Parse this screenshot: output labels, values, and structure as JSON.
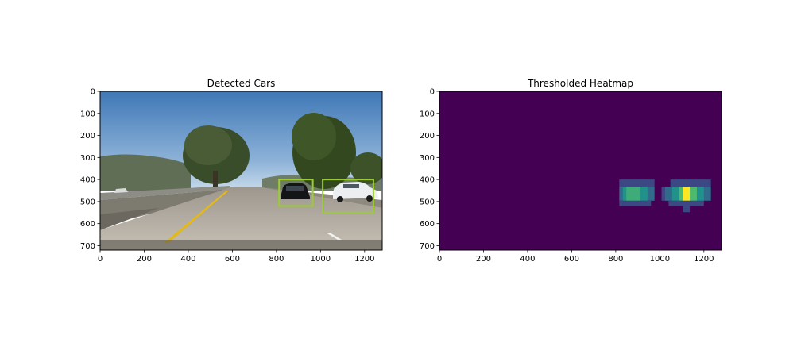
{
  "chart_data": [
    {
      "type": "image",
      "title": "Detected Cars",
      "xlim": [
        0,
        1280
      ],
      "ylim": [
        720,
        0
      ],
      "xticks": [
        0,
        200,
        400,
        600,
        800,
        1000,
        1200
      ],
      "yticks": [
        0,
        100,
        200,
        300,
        400,
        500,
        600,
        700
      ],
      "detections": [
        {
          "x1": 812,
          "y1": 400,
          "x2": 965,
          "y2": 520,
          "color": "#9acd32"
        },
        {
          "x1": 1010,
          "y1": 400,
          "x2": 1240,
          "y2": 550,
          "color": "#9acd32"
        }
      ],
      "colors": {
        "sky_top": "#4a82bd",
        "sky_bottom": "#c2d7ea",
        "road": "#b8b2a8",
        "lane_yellow": "#e2b81f",
        "box": "#9acd32"
      }
    },
    {
      "type": "heatmap",
      "title": "Thresholded Heatmap",
      "xlim": [
        0,
        1280
      ],
      "ylim": [
        720,
        0
      ],
      "xticks": [
        0,
        200,
        400,
        600,
        800,
        1000,
        1200
      ],
      "yticks": [
        0,
        100,
        200,
        300,
        400,
        500,
        600,
        700
      ],
      "colormap": "viridis",
      "background_value": 0,
      "cells": [
        {
          "x": [
            816,
            976
          ],
          "y": [
            400,
            432
          ],
          "v": 0.22
        },
        {
          "x": [
            816,
            976
          ],
          "y": [
            432,
            496
          ],
          "v": 0.35
        },
        {
          "x": [
            832,
            944
          ],
          "y": [
            432,
            496
          ],
          "v": 0.5
        },
        {
          "x": [
            848,
            912
          ],
          "y": [
            432,
            496
          ],
          "v": 0.62
        },
        {
          "x": [
            816,
            960
          ],
          "y": [
            496,
            520
          ],
          "v": 0.22
        },
        {
          "x": [
            1008,
            1040
          ],
          "y": [
            432,
            496
          ],
          "v": 0.22
        },
        {
          "x": [
            1048,
            1232
          ],
          "y": [
            400,
            432
          ],
          "v": 0.22
        },
        {
          "x": [
            1024,
            1232
          ],
          "y": [
            432,
            496
          ],
          "v": 0.35
        },
        {
          "x": [
            1056,
            1200
          ],
          "y": [
            432,
            496
          ],
          "v": 0.5
        },
        {
          "x": [
            1088,
            1168
          ],
          "y": [
            432,
            496
          ],
          "v": 0.68
        },
        {
          "x": [
            1104,
            1136
          ],
          "y": [
            432,
            496
          ],
          "v": 1.0
        },
        {
          "x": [
            1040,
            1200
          ],
          "y": [
            496,
            520
          ],
          "v": 0.22
        },
        {
          "x": [
            1104,
            1136
          ],
          "y": [
            520,
            548
          ],
          "v": 0.22
        }
      ]
    }
  ]
}
